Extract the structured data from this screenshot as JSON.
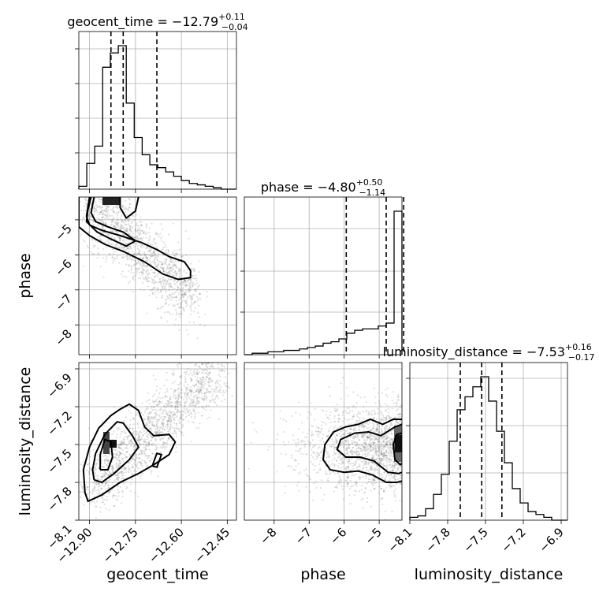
{
  "chart_data": {
    "type": "corner",
    "parameters": [
      "geocent_time",
      "phase",
      "luminosity_distance"
    ],
    "titles": [
      {
        "name": "geocent_time",
        "median": "−12.79",
        "plus": "+0.11",
        "minus": "−0.04"
      },
      {
        "name": "phase",
        "median": "−4.80",
        "plus": "+0.50",
        "minus": "−1.14"
      },
      {
        "name": "luminosity_distance",
        "median": "−7.53",
        "plus": "+0.16",
        "minus": "−0.17"
      }
    ],
    "ranges": {
      "geocent_time": [
        -12.935,
        -12.42
      ],
      "phase": [
        -8.85,
        -4.35
      ],
      "luminosity_distance": [
        -8.1,
        -6.85
      ]
    },
    "ticks": {
      "geocent_time": [
        "−12.90",
        "−12.75",
        "−12.60",
        "−12.45"
      ],
      "phase_x": [
        "−8",
        "−7",
        "−6",
        "−5"
      ],
      "phase_y": [
        "−5",
        "−6",
        "−7",
        "−8"
      ],
      "luminosity_distance_y": [
        "−6.9",
        "−7.2",
        "−7.5",
        "−7.8",
        "−8.1"
      ],
      "luminosity_distance_x": [
        "−8.1",
        "−7.8",
        "−7.5",
        "−7.2",
        "−6.9"
      ]
    },
    "tick_values": {
      "geocent_time": [
        -12.9,
        -12.75,
        -12.6,
        -12.45
      ],
      "phase": [
        -8,
        -7,
        -6,
        -5
      ],
      "luminosity_distance": [
        -8.1,
        -7.8,
        -7.5,
        -7.2,
        -6.9
      ]
    },
    "quantiles": {
      "geocent_time": [
        -12.83,
        -12.79,
        -12.68
      ],
      "phase": [
        -5.94,
        -4.8,
        -4.3
      ],
      "luminosity_distance": [
        -7.7,
        -7.53,
        -7.37
      ]
    },
    "histograms": {
      "geocent_time": {
        "edges": [
          -12.935,
          -12.909,
          -12.883,
          -12.857,
          -12.832,
          -12.806,
          -12.78,
          -12.754,
          -12.728,
          -12.703,
          -12.677,
          -12.651,
          -12.625,
          -12.6,
          -12.574,
          -12.548,
          -12.522,
          -12.496,
          -12.47,
          -12.445,
          -12.42
        ],
        "counts": [
          2,
          18,
          30,
          85,
          95,
          100,
          60,
          36,
          24,
          17,
          15,
          12,
          9,
          6,
          4,
          3,
          2,
          1,
          0,
          0
        ]
      },
      "phase": {
        "edges": [
          -8.85,
          -8.625,
          -8.4,
          -8.175,
          -7.95,
          -7.725,
          -7.5,
          -7.275,
          -7.05,
          -6.825,
          -6.6,
          -6.375,
          -6.15,
          -5.925,
          -5.7,
          -5.475,
          -5.25,
          -5.025,
          -4.8,
          -4.575,
          -4.35
        ],
        "counts": [
          0,
          1,
          1,
          2,
          2,
          3,
          3,
          4,
          5,
          6,
          8,
          9,
          11,
          15,
          17,
          18,
          18,
          20,
          22,
          100
        ]
      },
      "luminosity_distance": {
        "edges": [
          -8.1,
          -8.0375,
          -7.975,
          -7.9125,
          -7.85,
          -7.7875,
          -7.725,
          -7.6625,
          -7.6,
          -7.5375,
          -7.475,
          -7.4125,
          -7.35,
          -7.2875,
          -7.225,
          -7.1625,
          -7.1,
          -7.0375,
          -6.975,
          -6.9125,
          -6.85
        ],
        "counts": [
          2,
          3,
          8,
          18,
          32,
          55,
          77,
          86,
          93,
          100,
          83,
          62,
          40,
          22,
          12,
          6,
          4,
          2,
          0,
          0
        ]
      }
    },
    "contours_2d": [
      {
        "x": "geocent_time",
        "y": "phase",
        "levels": [
          [
            [
              -12.9,
              -4.35
            ],
            [
              -12.91,
              -4.9
            ],
            [
              -12.9,
              -5.15
            ],
            [
              -12.86,
              -5.3
            ],
            [
              -12.8,
              -5.45
            ],
            [
              -12.73,
              -5.65
            ],
            [
              -12.68,
              -5.85
            ],
            [
              -12.64,
              -6.05
            ],
            [
              -12.59,
              -6.2
            ],
            [
              -12.57,
              -6.45
            ],
            [
              -12.57,
              -6.65
            ],
            [
              -12.61,
              -6.7
            ],
            [
              -12.66,
              -6.55
            ],
            [
              -12.72,
              -6.2
            ],
            [
              -12.79,
              -5.9
            ],
            [
              -12.85,
              -5.7
            ],
            [
              -12.9,
              -5.45
            ],
            [
              -12.935,
              -5.2
            ],
            [
              -12.935,
              -4.35
            ]
          ],
          [
            [
              -12.885,
              -4.35
            ],
            [
              -12.895,
              -4.8
            ],
            [
              -12.88,
              -5.05
            ],
            [
              -12.84,
              -5.2
            ],
            [
              -12.79,
              -5.35
            ],
            [
              -12.75,
              -5.6
            ],
            [
              -12.78,
              -5.75
            ],
            [
              -12.83,
              -5.55
            ],
            [
              -12.875,
              -5.35
            ],
            [
              -12.91,
              -5.05
            ],
            [
              -12.905,
              -4.7
            ],
            [
              -12.895,
              -4.35
            ]
          ],
          [
            [
              -12.8,
              -4.35
            ],
            [
              -12.8,
              -4.65
            ],
            [
              -12.78,
              -4.95
            ],
            [
              -12.75,
              -4.75
            ],
            [
              -12.74,
              -4.35
            ]
          ]
        ]
      },
      {
        "x": "geocent_time",
        "y": "luminosity_distance",
        "levels": [
          [
            [
              -12.915,
              -7.88
            ],
            [
              -12.905,
              -7.95
            ],
            [
              -12.86,
              -7.9
            ],
            [
              -12.8,
              -7.8
            ],
            [
              -12.74,
              -7.73
            ],
            [
              -12.69,
              -7.66
            ],
            [
              -12.64,
              -7.58
            ],
            [
              -12.62,
              -7.48
            ],
            [
              -12.64,
              -7.42
            ],
            [
              -12.69,
              -7.43
            ],
            [
              -12.72,
              -7.36
            ],
            [
              -12.74,
              -7.23
            ],
            [
              -12.77,
              -7.18
            ],
            [
              -12.8,
              -7.22
            ],
            [
              -12.83,
              -7.27
            ],
            [
              -12.87,
              -7.37
            ],
            [
              -12.9,
              -7.52
            ],
            [
              -12.92,
              -7.7
            ],
            [
              -12.915,
              -7.88
            ]
          ],
          [
            [
              -12.885,
              -7.78
            ],
            [
              -12.86,
              -7.8
            ],
            [
              -12.82,
              -7.73
            ],
            [
              -12.77,
              -7.62
            ],
            [
              -12.74,
              -7.52
            ],
            [
              -12.76,
              -7.43
            ],
            [
              -12.79,
              -7.33
            ],
            [
              -12.81,
              -7.32
            ],
            [
              -12.85,
              -7.42
            ],
            [
              -12.88,
              -7.57
            ],
            [
              -12.89,
              -7.7
            ],
            [
              -12.885,
              -7.78
            ]
          ],
          [
            [
              -12.865,
              -7.7
            ],
            [
              -12.84,
              -7.7
            ],
            [
              -12.825,
              -7.6
            ],
            [
              -12.83,
              -7.48
            ],
            [
              -12.85,
              -7.46
            ],
            [
              -12.865,
              -7.58
            ],
            [
              -12.865,
              -7.7
            ]
          ],
          [
            [
              -12.695,
              -7.67
            ],
            [
              -12.68,
              -7.68
            ],
            [
              -12.665,
              -7.58
            ],
            [
              -12.68,
              -7.57
            ],
            [
              -12.695,
              -7.67
            ]
          ]
        ]
      },
      {
        "x": "phase",
        "y": "luminosity_distance",
        "levels": [
          [
            [
              -4.35,
              -7.3
            ],
            [
              -4.6,
              -7.3
            ],
            [
              -4.9,
              -7.34
            ],
            [
              -5.25,
              -7.3
            ],
            [
              -5.6,
              -7.34
            ],
            [
              -5.95,
              -7.36
            ],
            [
              -6.3,
              -7.4
            ],
            [
              -6.55,
              -7.5
            ],
            [
              -6.6,
              -7.62
            ],
            [
              -6.4,
              -7.7
            ],
            [
              -6.0,
              -7.72
            ],
            [
              -5.6,
              -7.71
            ],
            [
              -5.2,
              -7.74
            ],
            [
              -4.8,
              -7.8
            ],
            [
              -4.5,
              -7.8
            ],
            [
              -4.35,
              -7.79
            ]
          ],
          [
            [
              -4.35,
              -7.34
            ],
            [
              -4.55,
              -7.36
            ],
            [
              -4.95,
              -7.43
            ],
            [
              -5.3,
              -7.4
            ],
            [
              -5.7,
              -7.41
            ],
            [
              -6.1,
              -7.46
            ],
            [
              -6.2,
              -7.54
            ],
            [
              -5.95,
              -7.6
            ],
            [
              -5.55,
              -7.6
            ],
            [
              -5.15,
              -7.63
            ],
            [
              -4.75,
              -7.72
            ],
            [
              -4.45,
              -7.73
            ],
            [
              -4.35,
              -7.72
            ]
          ],
          [
            [
              -4.35,
              -7.41
            ],
            [
              -4.5,
              -7.42
            ],
            [
              -4.6,
              -7.5
            ],
            [
              -4.55,
              -7.62
            ],
            [
              -4.4,
              -7.66
            ],
            [
              -4.35,
              -7.65
            ]
          ]
        ]
      }
    ]
  }
}
